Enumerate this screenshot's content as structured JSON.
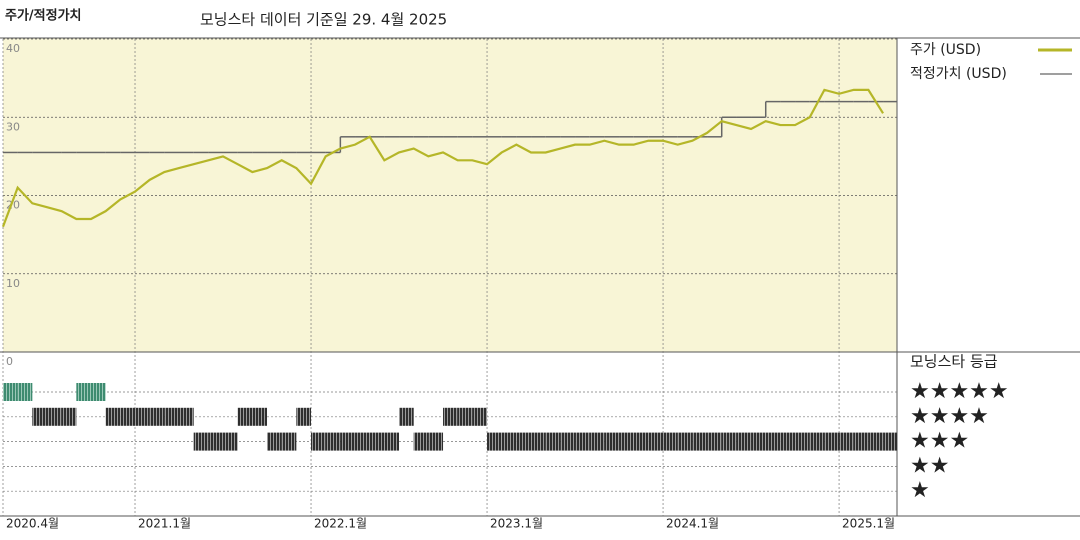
{
  "chart_data": {
    "type": "line",
    "title": "주가/적정가치",
    "subtitle": "모닝스타 데이터 기준일 29. 4월 2025",
    "x": [
      "2020.4",
      "2020.5",
      "2020.6",
      "2020.7",
      "2020.8",
      "2020.9",
      "2020.10",
      "2020.11",
      "2020.12",
      "2021.1",
      "2021.2",
      "2021.3",
      "2021.4",
      "2021.5",
      "2021.6",
      "2021.7",
      "2021.8",
      "2021.9",
      "2021.10",
      "2021.11",
      "2021.12",
      "2022.1",
      "2022.2",
      "2022.3",
      "2022.4",
      "2022.5",
      "2022.6",
      "2022.7",
      "2022.8",
      "2022.9",
      "2022.10",
      "2022.11",
      "2022.12",
      "2023.1",
      "2023.2",
      "2023.3",
      "2023.4",
      "2023.5",
      "2023.6",
      "2023.7",
      "2023.8",
      "2023.9",
      "2023.10",
      "2023.11",
      "2023.12",
      "2024.1",
      "2024.2",
      "2024.3",
      "2024.4",
      "2024.5",
      "2024.6",
      "2024.7",
      "2024.8",
      "2024.9",
      "2024.10",
      "2024.11",
      "2024.12",
      "2025.1",
      "2025.2",
      "2025.3",
      "2025.4"
    ],
    "series": [
      {
        "name": "주가 (USD)",
        "color": "#b5b628",
        "values": [
          16,
          21,
          19,
          18.5,
          18,
          17,
          17,
          18,
          19.5,
          20.5,
          22,
          23,
          23.5,
          24,
          24.5,
          25,
          24,
          23,
          23.5,
          24.5,
          23.5,
          21.5,
          25,
          26,
          26.5,
          27.5,
          24.5,
          25.5,
          26,
          25,
          25.5,
          24.5,
          24.5,
          24,
          25.5,
          26.5,
          25.5,
          25.5,
          26,
          26.5,
          26.5,
          27,
          26.5,
          26.5,
          27,
          27,
          26.5,
          27,
          28,
          29.5,
          29,
          28.5,
          29.5,
          29,
          29,
          30,
          33.5,
          33,
          33.5,
          33.5,
          30.5
        ]
      },
      {
        "name": "적정가치 (USD)",
        "color": "#666666",
        "values": [
          25.5,
          25.5,
          25.5,
          25.5,
          25.5,
          25.5,
          25.5,
          25.5,
          25.5,
          25.5,
          25.5,
          25.5,
          25.5,
          25.5,
          25.5,
          25.5,
          25.5,
          25.5,
          25.5,
          25.5,
          25.5,
          25.5,
          25.5,
          27.5,
          27.5,
          27.5,
          27.5,
          27.5,
          27.5,
          27.5,
          27.5,
          27.5,
          27.5,
          27.5,
          27.5,
          27.5,
          27.5,
          27.5,
          27.5,
          27.5,
          27.5,
          27.5,
          27.5,
          27.5,
          27.5,
          27.5,
          27.5,
          27.5,
          27.5,
          30,
          30,
          30,
          32,
          32,
          32,
          32,
          32,
          32,
          32,
          32,
          32
        ]
      }
    ],
    "ylim": [
      0,
      40
    ],
    "yticks": [
      0,
      10,
      20,
      30,
      40
    ],
    "grid": true,
    "xticks": [
      {
        "value": "2020.4",
        "label": "2020.4월"
      },
      {
        "value": "2021.1",
        "label": "2021.1월"
      },
      {
        "value": "2022.1",
        "label": "2022.1월"
      },
      {
        "value": "2023.1",
        "label": "2023.1월"
      },
      {
        "value": "2024.1",
        "label": "2024.1월"
      },
      {
        "value": "2025.1",
        "label": "2025.1월"
      }
    ],
    "rating": {
      "title": "모닝스타 등급",
      "levels": [
        5,
        4,
        3,
        2,
        1
      ],
      "labels": [
        "★★★★★",
        "★★★★",
        "★★★",
        "★★",
        "★"
      ],
      "colors": {
        "5": "#3e8b70",
        "other": "#3a3a3a"
      },
      "values": [
        5,
        5,
        4,
        4,
        4,
        5,
        5,
        4,
        4,
        4,
        4,
        4,
        4,
        3,
        3,
        3,
        4,
        4,
        3,
        3,
        4,
        3,
        3,
        3,
        3,
        3,
        3,
        4,
        3,
        3,
        4,
        4,
        4,
        3,
        3,
        3,
        3,
        3,
        3,
        3,
        3,
        3,
        3,
        3,
        3,
        3,
        3,
        3,
        3,
        3,
        3,
        3,
        3,
        3,
        3,
        3,
        3,
        3,
        3,
        3,
        3
      ]
    }
  }
}
